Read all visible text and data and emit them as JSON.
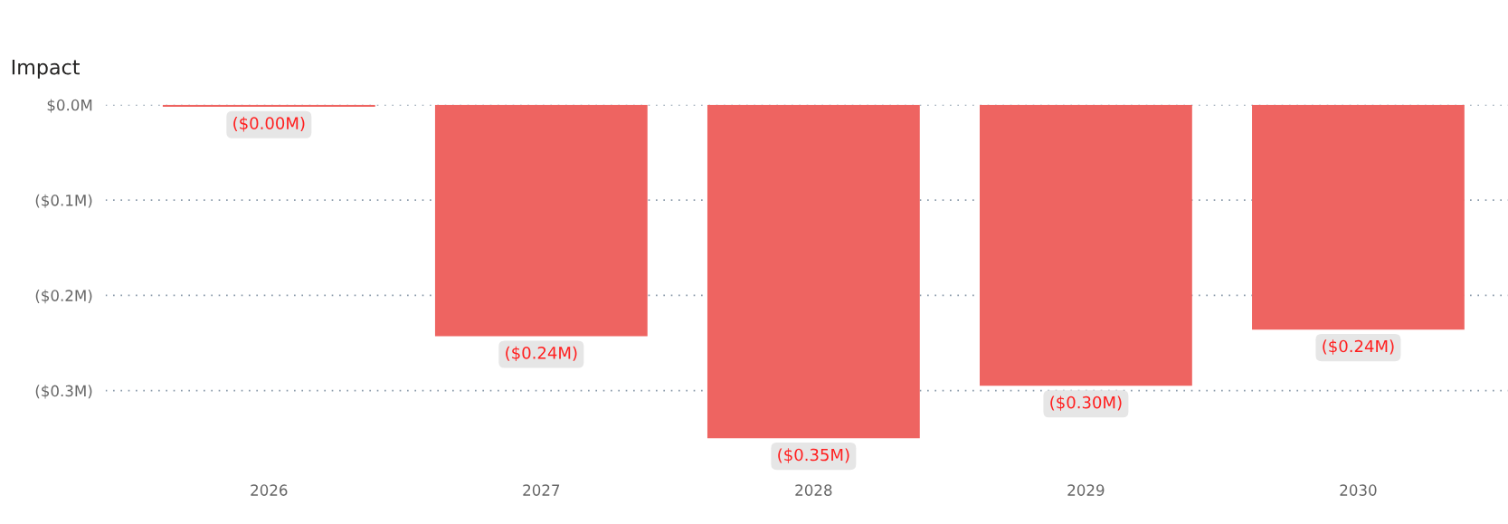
{
  "chart_data": {
    "type": "bar",
    "title": "Impact",
    "categories": [
      "2026",
      "2027",
      "2028",
      "2029",
      "2030"
    ],
    "series": [
      {
        "color": "#ee6461",
        "values": [
          -0.002,
          -0.243,
          -0.35,
          -0.295,
          -0.236
        ],
        "value_labels": [
          "($0.00M)",
          "($0.24M)",
          "($0.35M)",
          "($0.30M)",
          "($0.24M)"
        ]
      }
    ],
    "ylim": [
      -0.385,
      0.0
    ],
    "yticks": [
      {
        "value": 0.0,
        "label": "$0.0M"
      },
      {
        "value": -0.1,
        "label": "($0.1M)"
      },
      {
        "value": -0.2,
        "label": "($0.2M)"
      },
      {
        "value": -0.3,
        "label": "($0.3M)"
      }
    ],
    "grid": "y",
    "legend": false
  }
}
